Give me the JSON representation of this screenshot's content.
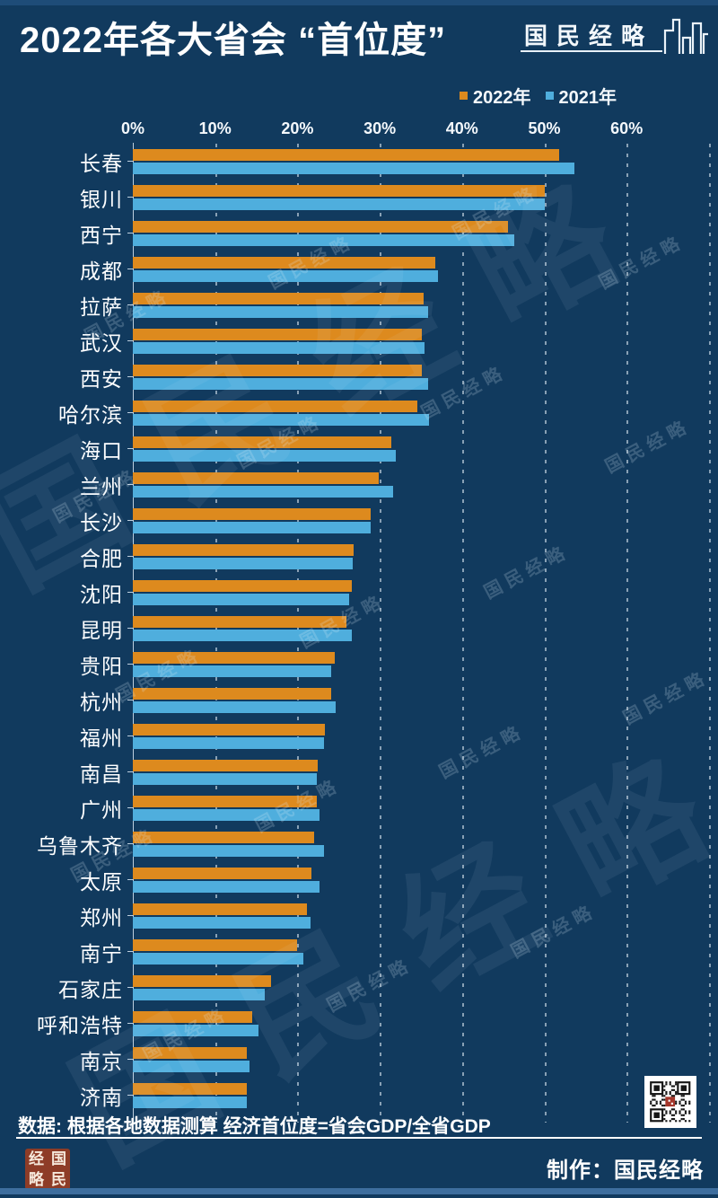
{
  "title": "2022年各大省会 “首位度”",
  "brand": {
    "logo_text": "国民经略",
    "seal_chars": [
      "经",
      "国",
      "略",
      "民"
    ],
    "credit_label": "制作：国民经略"
  },
  "legend": [
    {
      "label": "2022年",
      "color": "#DD8A1E"
    },
    {
      "label": "2021年",
      "color": "#4FAEDD"
    }
  ],
  "footer": {
    "source_note": "数据: 根据各地数据测算 经济首位度=省会GDP/全省GDP"
  },
  "watermark": {
    "text": "国民经略"
  },
  "colors": {
    "background": "#113A5E",
    "bar_2022": "#DD8A1E",
    "bar_2021": "#4FAEDD",
    "text": "#FFFFFF",
    "seal_red": "#8E3C27",
    "top_strip": "#1E4C78",
    "bottom_strip": "#3E6E9E"
  },
  "chart_data": {
    "type": "bar",
    "orientation": "horizontal",
    "title": "2022年各大省会 “首位度”",
    "xlabel": "经济首位度 (省会GDP/全省GDP)",
    "ylabel": "",
    "xlim": [
      0,
      70
    ],
    "x_ticks": [
      "0%",
      "10%",
      "20%",
      "30%",
      "40%",
      "50%",
      "60%"
    ],
    "x_tick_values": [
      0,
      10,
      20,
      30,
      40,
      50,
      60
    ],
    "grid": "dashed-vertical",
    "legend_position": "top-right",
    "categories": [
      "长春",
      "银川",
      "西宁",
      "成都",
      "拉萨",
      "武汉",
      "西安",
      "哈尔滨",
      "海口",
      "兰州",
      "长沙",
      "合肥",
      "沈阳",
      "昆明",
      "贵阳",
      "杭州",
      "福州",
      "南昌",
      "广州",
      "乌鲁木齐",
      "太原",
      "郑州",
      "南宁",
      "石家庄",
      "呼和浩特",
      "南京",
      "济南"
    ],
    "series": [
      {
        "name": "2022年",
        "color": "#DD8A1E",
        "values": [
          51.8,
          50.0,
          45.6,
          36.7,
          35.3,
          35.1,
          35.1,
          34.6,
          31.4,
          29.9,
          28.9,
          26.8,
          26.6,
          26.0,
          24.5,
          24.1,
          23.3,
          22.5,
          22.4,
          22.0,
          21.7,
          21.2,
          20.0,
          16.8,
          14.5,
          13.8,
          13.9
        ]
      },
      {
        "name": "2021年",
        "color": "#4FAEDD",
        "values": [
          53.7,
          50.0,
          46.3,
          37.1,
          35.9,
          35.4,
          35.9,
          36.0,
          31.9,
          31.6,
          28.9,
          26.7,
          26.3,
          26.6,
          24.1,
          24.6,
          23.2,
          22.4,
          22.7,
          23.2,
          22.7,
          21.6,
          20.7,
          16.0,
          15.3,
          14.2,
          13.9
        ]
      }
    ]
  }
}
